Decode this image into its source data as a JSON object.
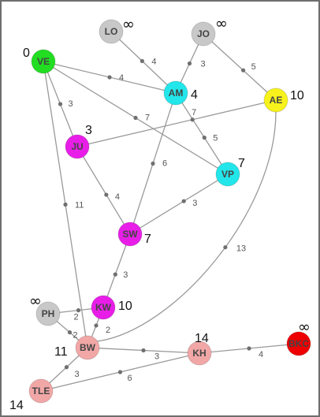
{
  "diagram": {
    "nodes": [
      {
        "id": "LO",
        "label": "LO",
        "dist": "∞",
        "color": "#c8c8c8",
        "textColor": "#6a6a6a"
      },
      {
        "id": "JO",
        "label": "JO",
        "dist": "∞",
        "color": "#c8c8c8",
        "textColor": "#6a6a6a"
      },
      {
        "id": "VE",
        "label": "VE",
        "dist": "0",
        "color": "#22dd22",
        "textColor": "#1a6a1a"
      },
      {
        "id": "AM",
        "label": "AM",
        "dist": "4",
        "color": "#22e6ea",
        "textColor": "#0a6a70"
      },
      {
        "id": "AE",
        "label": "AE",
        "dist": "10",
        "color": "#f7f21c",
        "textColor": "#7a7000"
      },
      {
        "id": "JU",
        "label": "JU",
        "dist": "3",
        "color": "#e81ee8",
        "textColor": "#5a0a5a"
      },
      {
        "id": "VP",
        "label": "VP",
        "dist": "7",
        "color": "#22e6ea",
        "textColor": "#0a6a70"
      },
      {
        "id": "SW",
        "label": "SW",
        "dist": "7",
        "color": "#e81ee8",
        "textColor": "#5a0a5a"
      },
      {
        "id": "PH",
        "label": "PH",
        "dist": "∞",
        "color": "#c8c8c8",
        "textColor": "#6a6a6a"
      },
      {
        "id": "KW",
        "label": "KW",
        "dist": "10",
        "color": "#e81ee8",
        "textColor": "#5a0a5a"
      },
      {
        "id": "BW",
        "label": "BW",
        "dist": "11",
        "color": "#f2a7a7",
        "textColor": "#8a4a4a"
      },
      {
        "id": "KH",
        "label": "KH",
        "dist": "14",
        "color": "#f2a7a7",
        "textColor": "#8a4a4a"
      },
      {
        "id": "BKC",
        "label": "BKC",
        "dist": "∞",
        "color": "#ee0000",
        "textColor": "#7a0000"
      },
      {
        "id": "TLE",
        "label": "TLE",
        "dist": "14",
        "color": "#f2a7a7",
        "textColor": "#8a4a4a"
      }
    ],
    "edges": [
      {
        "from": "LO",
        "to": "AM",
        "weight": "4"
      },
      {
        "from": "JO",
        "to": "AM",
        "weight": "3"
      },
      {
        "from": "JO",
        "to": "AE",
        "weight": "5"
      },
      {
        "from": "VE",
        "to": "AM",
        "weight": "4"
      },
      {
        "from": "VE",
        "to": "JU",
        "weight": "3"
      },
      {
        "from": "VE",
        "to": "VP",
        "weight": "7"
      },
      {
        "from": "VE",
        "to": "BW",
        "weight": "11"
      },
      {
        "from": "AM",
        "to": "VP",
        "weight": "5"
      },
      {
        "from": "AM",
        "to": "SW",
        "weight": "6"
      },
      {
        "from": "JU",
        "to": "AE",
        "weight": "7"
      },
      {
        "from": "JU",
        "to": "SW",
        "weight": "4"
      },
      {
        "from": "VP",
        "to": "SW",
        "weight": "3"
      },
      {
        "from": "AE",
        "to": "BW",
        "weight": "13"
      },
      {
        "from": "SW",
        "to": "KW",
        "weight": "3"
      },
      {
        "from": "PH",
        "to": "KW",
        "weight": "2"
      },
      {
        "from": "PH",
        "to": "BW",
        "weight": "2"
      },
      {
        "from": "KW",
        "to": "BW",
        "weight": "2"
      },
      {
        "from": "BW",
        "to": "KH",
        "weight": "3"
      },
      {
        "from": "BW",
        "to": "TLE",
        "weight": "3"
      },
      {
        "from": "KH",
        "to": "BKC",
        "weight": "4"
      },
      {
        "from": "TLE",
        "to": "KH",
        "weight": "6"
      }
    ]
  }
}
